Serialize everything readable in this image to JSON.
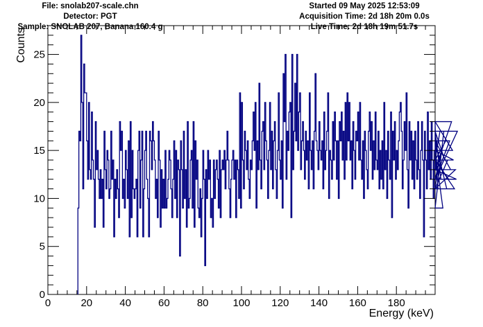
{
  "header": {
    "file": "File: snolab207-scale.chn",
    "detector": "Detector: PGT",
    "sample": "Sample: SNOLAB 207, Banana 160.4 g",
    "started": "Started 09 May 2025 12:53:09",
    "acquisition": "Acquisition Time: 2d 18h 20m 0.0s",
    "live": "Live Time: 2d 18h 19m 51.7s"
  },
  "colors": {
    "line": "#000080",
    "axis": "#000000"
  },
  "chart_data": {
    "type": "line",
    "title": "",
    "xlabel": "Energy (keV)",
    "ylabel": "Counts",
    "xlim": [
      0,
      200
    ],
    "ylim": [
      0,
      28
    ],
    "grid": false,
    "xticks": [
      0,
      20,
      40,
      60,
      80,
      100,
      120,
      140,
      160,
      180
    ],
    "yticks": [
      0,
      5,
      10,
      15,
      20,
      25
    ],
    "histogram": {
      "x_start": 15.5,
      "bin_width": 0.5,
      "counts": [
        9,
        17,
        16,
        27,
        20,
        11,
        24,
        21,
        21,
        16,
        12,
        20,
        13,
        12,
        19,
        14,
        12,
        7,
        18,
        13,
        15,
        12,
        10,
        13,
        10,
        12,
        7,
        17,
        13,
        11,
        15,
        14,
        10,
        11,
        17,
        12,
        14,
        6,
        12,
        10,
        13,
        11,
        8,
        18,
        15,
        17,
        10,
        12,
        9,
        15,
        13,
        10,
        16,
        6,
        18,
        8,
        15,
        11,
        10,
        11,
        12,
        6,
        15,
        17,
        9,
        14,
        17,
        6,
        11,
        15,
        17,
        12,
        10,
        6,
        17,
        16,
        13,
        18,
        16,
        14,
        10,
        12,
        8,
        17,
        14,
        7,
        13,
        9,
        12,
        9,
        15,
        9,
        10,
        12,
        15,
        14,
        11,
        8,
        12,
        16,
        10,
        15,
        8,
        14,
        13,
        4,
        16,
        13,
        9,
        17,
        10,
        13,
        7,
        18,
        9,
        10,
        14,
        15,
        9,
        18,
        7,
        16,
        12,
        14,
        9,
        8,
        11,
        6,
        10,
        15,
        12,
        3,
        13,
        10,
        15,
        12,
        14,
        8,
        10,
        7,
        14,
        10,
        13,
        14,
        12,
        9,
        15,
        8,
        13,
        14,
        13,
        15,
        11,
        14,
        17,
        14,
        11,
        8,
        12,
        14,
        15,
        12,
        14,
        8,
        14,
        13,
        10,
        21,
        9,
        20,
        14,
        11,
        17,
        15,
        13,
        16,
        12,
        10,
        14,
        13,
        16,
        19,
        15,
        20,
        9,
        16,
        13,
        22,
        14,
        11,
        17,
        18,
        13,
        20,
        16,
        14,
        10,
        15,
        20,
        13,
        17,
        11,
        16,
        18,
        13,
        10,
        15,
        21,
        14,
        12,
        16,
        9,
        23,
        18,
        25,
        12,
        17,
        15,
        19,
        20,
        8,
        25,
        13,
        17,
        22,
        16,
        25,
        15,
        19,
        21,
        13,
        16,
        18,
        15,
        12,
        17,
        14,
        16,
        11,
        21,
        15,
        13,
        16,
        11,
        17,
        23,
        16,
        15,
        13,
        18,
        15,
        14,
        16,
        11,
        19,
        13,
        15,
        17,
        21,
        10,
        15,
        14,
        12,
        18,
        14,
        19,
        16,
        12,
        16,
        10,
        18,
        16,
        19,
        14,
        17,
        12,
        20,
        14,
        21,
        16,
        20,
        14,
        16,
        11,
        18,
        15,
        12,
        17,
        16,
        19,
        14,
        20,
        14,
        12,
        16,
        10,
        17,
        15,
        13,
        11,
        17,
        19,
        15,
        18,
        12,
        16,
        13,
        19,
        14,
        13,
        17,
        11,
        15,
        12,
        16,
        11,
        20,
        13,
        15,
        10,
        17,
        14,
        12,
        19,
        8,
        17,
        14,
        18,
        12,
        15,
        13,
        16,
        19,
        20,
        17,
        11,
        14,
        18,
        15,
        21,
        13,
        9,
        18,
        14,
        17,
        12,
        16,
        11,
        17,
        14,
        12,
        18,
        13,
        10,
        15,
        18,
        14,
        6,
        17,
        14,
        11,
        19,
        13,
        16,
        12,
        18,
        14,
        10,
        15,
        18,
        13,
        16,
        11,
        14,
        17,
        12,
        15,
        9,
        17,
        14,
        16,
        11,
        14,
        12,
        16,
        13,
        18,
        15,
        14,
        11,
        13,
        12,
        17
      ]
    }
  }
}
